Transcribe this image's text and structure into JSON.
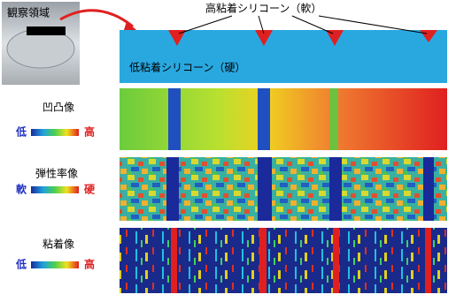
{
  "photo_label": "観察領域",
  "cross_section": {
    "soft_label": "高粘着シリコーン（軟）",
    "hard_label": "低粘着シリコーン（硬）"
  },
  "panels": [
    {
      "title": "凹凸像",
      "low": "低",
      "high": "高"
    },
    {
      "title": "弾性率像",
      "low": "軟",
      "high": "硬"
    },
    {
      "title": "粘着像",
      "low": "低",
      "high": "高"
    }
  ]
}
